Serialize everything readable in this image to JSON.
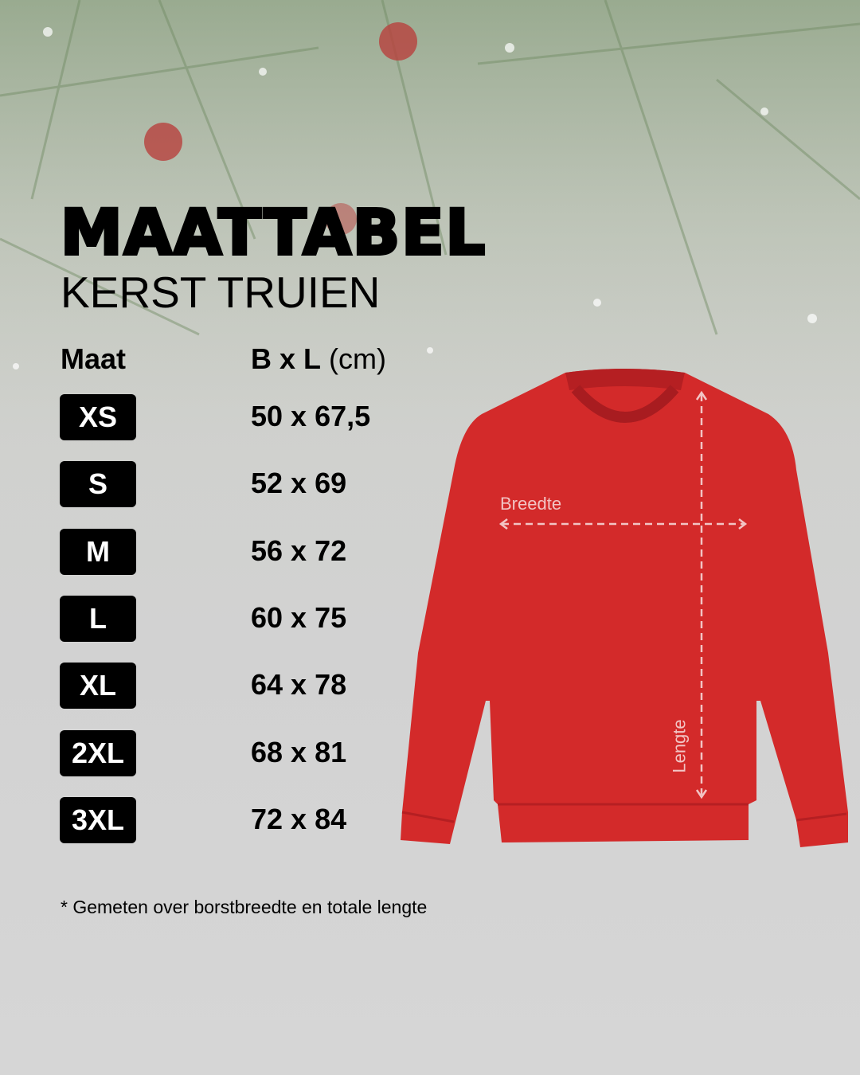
{
  "title": "MAATTABEL",
  "subtitle": "KERST TRUIEN",
  "headers": {
    "size": "Maat",
    "dims_bold": "B x L",
    "dims_unit": "(cm)"
  },
  "sizes": [
    {
      "size": "XS",
      "dims": "50 x 67,5"
    },
    {
      "size": "S",
      "dims": "52 x 69"
    },
    {
      "size": "M",
      "dims": "56 x 72"
    },
    {
      "size": "L",
      "dims": "60 x 75"
    },
    {
      "size": "XL",
      "dims": "64 x 78"
    },
    {
      "size": "2XL",
      "dims": "68 x 81"
    },
    {
      "size": "3XL",
      "dims": "72 x 84"
    }
  ],
  "diagram": {
    "width_label": "Breedte",
    "length_label": "Lengte",
    "garment_color": "#d32a2a"
  },
  "footnote": "* Gemeten over borstbreedte en totale lengte"
}
